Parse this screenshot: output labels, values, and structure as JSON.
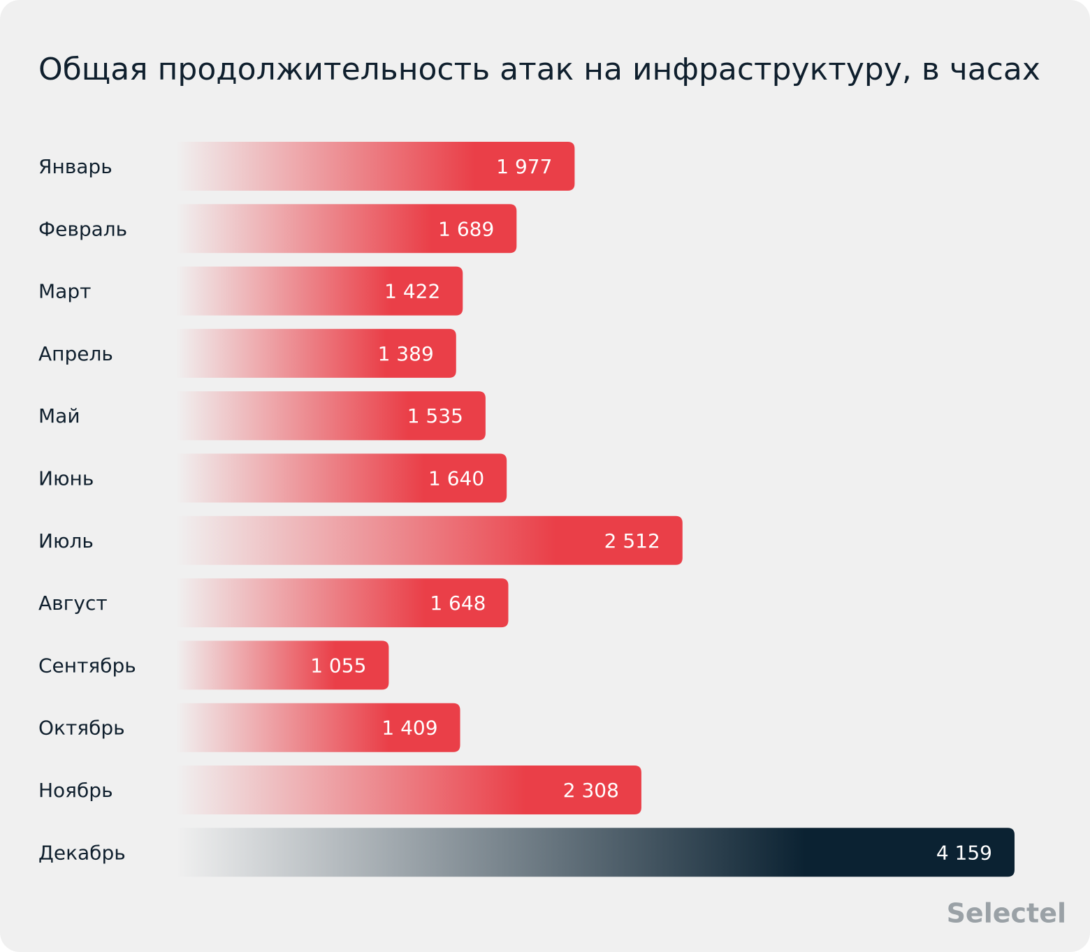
{
  "chart_data": {
    "type": "bar",
    "orientation": "horizontal",
    "title": "Общая продолжительность атак на инфраструктуру, в часах",
    "categories": [
      "Январь",
      "Февраль",
      "Март",
      "Апрель",
      "Май",
      "Июнь",
      "Июль",
      "Август",
      "Сентябрь",
      "Октябрь",
      "Ноябрь",
      "Декабрь"
    ],
    "values": [
      1977,
      1689,
      1422,
      1389,
      1535,
      1640,
      2512,
      1648,
      1055,
      1409,
      2308,
      4159
    ],
    "value_labels": [
      "1 977",
      "1 689",
      "1 422",
      "1 389",
      "1 535",
      "1 640",
      "2 512",
      "1 648",
      "1 055",
      "1 409",
      "2 308",
      "4 159"
    ],
    "colors": [
      "#ea3f48",
      "#ea3f48",
      "#ea3f48",
      "#ea3f48",
      "#ea3f48",
      "#ea3f48",
      "#ea3f48",
      "#ea3f48",
      "#ea3f48",
      "#ea3f48",
      "#ea3f48",
      "#0b2232"
    ]
  },
  "logo": "Selectel"
}
